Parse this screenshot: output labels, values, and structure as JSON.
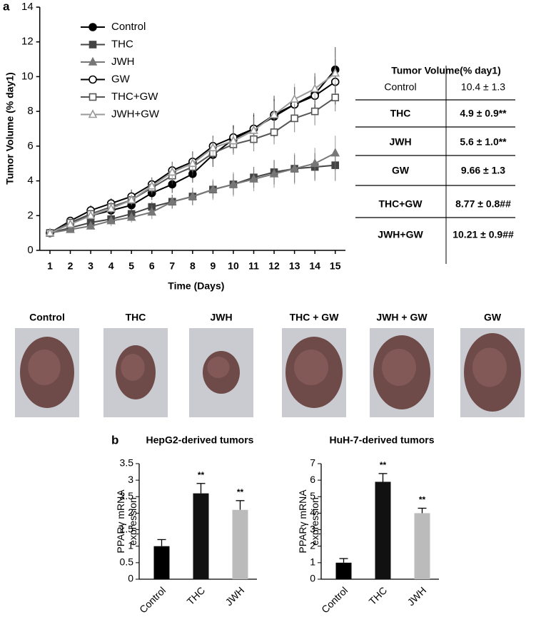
{
  "panel_labels": [
    "a",
    "b"
  ],
  "chart_data": [
    {
      "type": "line",
      "xlabel": "Time (Days)",
      "ylabel": "Tumor Volume (% day1)",
      "x": [
        1,
        2,
        3,
        4,
        5,
        6,
        7,
        8,
        9,
        10,
        11,
        12,
        13,
        14,
        15
      ],
      "xlim": [
        0.5,
        15.5
      ],
      "xticks": [
        1,
        2,
        3,
        4,
        5,
        6,
        7,
        8,
        9,
        10,
        11,
        12,
        13,
        14,
        15
      ],
      "ylim": [
        0,
        14
      ],
      "yticks": [
        0,
        2,
        4,
        6,
        8,
        10,
        12,
        14
      ],
      "series": [
        {
          "name": "Control",
          "color": "#000000",
          "marker": "circle",
          "filled": true,
          "values": [
            1,
            1.6,
            2.0,
            2.3,
            2.6,
            3.3,
            3.8,
            4.4,
            5.5,
            6.4,
            7.0,
            7.7,
            8.4,
            9.0,
            10.4
          ],
          "errors": [
            0.1,
            0.2,
            0.2,
            0.3,
            0.3,
            0.4,
            0.5,
            0.5,
            0.7,
            0.8,
            0.9,
            1.2,
            1.0,
            1.2,
            1.3
          ]
        },
        {
          "name": "THC",
          "color": "#444444",
          "marker": "square",
          "filled": true,
          "values": [
            1,
            1.3,
            1.6,
            1.8,
            2.1,
            2.5,
            2.8,
            3.1,
            3.5,
            3.8,
            4.2,
            4.5,
            4.7,
            4.8,
            4.9
          ],
          "errors": [
            0.1,
            0.2,
            0.2,
            0.3,
            0.3,
            0.3,
            0.4,
            0.5,
            0.5,
            0.6,
            0.6,
            0.7,
            0.8,
            0.8,
            0.9
          ]
        },
        {
          "name": "JWH",
          "color": "#777777",
          "marker": "triangle",
          "filled": true,
          "values": [
            1,
            1.2,
            1.4,
            1.7,
            1.9,
            2.2,
            2.8,
            3.1,
            3.5,
            3.8,
            4.1,
            4.4,
            4.7,
            5.0,
            5.6
          ],
          "errors": [
            0.1,
            0.2,
            0.2,
            0.3,
            0.3,
            0.4,
            0.4,
            0.5,
            0.6,
            0.7,
            0.7,
            0.8,
            0.9,
            0.9,
            1.0
          ]
        },
        {
          "name": "GW",
          "color": "#000000",
          "marker": "circle",
          "filled": false,
          "values": [
            1,
            1.7,
            2.3,
            2.7,
            3.1,
            3.8,
            4.6,
            5.1,
            6.0,
            6.5,
            7.0,
            7.8,
            8.4,
            8.9,
            9.7
          ],
          "errors": [
            0.1,
            0.2,
            0.3,
            0.3,
            0.4,
            0.4,
            0.5,
            0.6,
            0.6,
            0.7,
            0.8,
            0.9,
            1.0,
            1.1,
            1.3
          ]
        },
        {
          "name": "THC+GW",
          "color": "#555555",
          "marker": "square",
          "filled": false,
          "values": [
            1,
            1.6,
            2.1,
            2.5,
            2.9,
            3.6,
            4.3,
            4.8,
            5.6,
            6.1,
            6.4,
            6.8,
            7.6,
            8.0,
            8.8
          ],
          "errors": [
            0.1,
            0.2,
            0.2,
            0.3,
            0.3,
            0.4,
            0.5,
            0.5,
            0.6,
            0.6,
            0.7,
            0.7,
            0.8,
            0.8,
            0.8
          ]
        },
        {
          "name": "JWH+GW",
          "color": "#999999",
          "marker": "triangle",
          "filled": false,
          "values": [
            1,
            1.5,
            2.0,
            2.4,
            2.9,
            3.7,
            4.5,
            5.0,
            5.9,
            6.3,
            6.9,
            7.8,
            8.7,
            9.3,
            10.2
          ],
          "errors": [
            0.1,
            0.2,
            0.2,
            0.3,
            0.3,
            0.4,
            0.5,
            0.5,
            0.6,
            0.7,
            0.8,
            0.8,
            0.9,
            0.9,
            0.9
          ]
        }
      ]
    },
    {
      "type": "bar",
      "title": "HepG2-derived tumors",
      "ylabel": "PPARγ mRNA expression",
      "categories": [
        "Control",
        "THC",
        "JWH"
      ],
      "values": [
        1.0,
        2.6,
        2.1
      ],
      "errors": [
        0.2,
        0.3,
        0.28
      ],
      "annotations": [
        null,
        "**",
        "**"
      ],
      "colors": [
        "#000000",
        "#111111",
        "#bbbbbb"
      ],
      "ylim": [
        0,
        3.5
      ],
      "yticks": [
        0,
        0.5,
        1,
        1.5,
        2,
        2.5,
        3,
        3.5
      ]
    },
    {
      "type": "bar",
      "title": "HuH-7-derived tumors",
      "ylabel": "PPARγ mRNA expression",
      "categories": [
        "Control",
        "THC",
        "JWH"
      ],
      "values": [
        1.0,
        5.9,
        4.0
      ],
      "errors": [
        0.25,
        0.5,
        0.3
      ],
      "annotations": [
        null,
        "**",
        "**"
      ],
      "colors": [
        "#000000",
        "#111111",
        "#bbbbbb"
      ],
      "ylim": [
        0,
        7
      ],
      "yticks": [
        0,
        1,
        2,
        3,
        4,
        5,
        6,
        7
      ]
    }
  ],
  "table": {
    "title": "Tumor Volume(% day1)",
    "rows": [
      [
        "Control",
        "10.4 ± 1.3"
      ],
      [
        "THC",
        "4.9 ± 0.9**"
      ],
      [
        "JWH",
        "5.6 ± 1.0**"
      ],
      [
        "GW",
        "9.66 ± 1.3"
      ],
      [
        "THC+GW",
        "8.77 ± 0.8##"
      ],
      [
        "JWH+GW",
        "10.21 ± 0.9##"
      ]
    ]
  },
  "photos": [
    "Control",
    "THC",
    "JWH",
    "THC + GW",
    "JWH + GW",
    "GW"
  ]
}
